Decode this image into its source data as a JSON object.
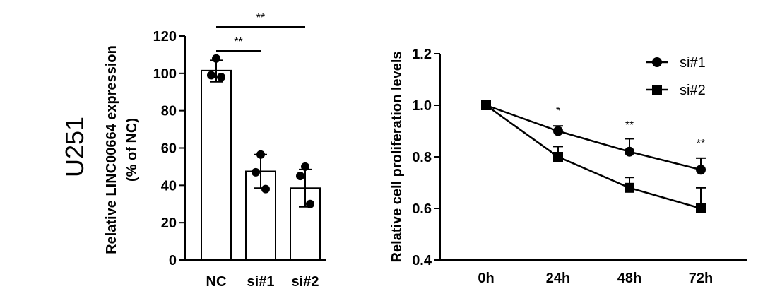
{
  "figure": {
    "row_label": "U251"
  },
  "chart_data": [
    {
      "type": "bar",
      "title": "",
      "xlabel": "",
      "ylabel_line1": "Relative LINC00664 expression",
      "ylabel_line2": "(% of NC)",
      "categories": [
        "NC",
        "si#1",
        "si#2"
      ],
      "values": [
        101.5,
        47.5,
        38.5
      ],
      "error_upper": [
        107,
        56.5,
        48.5
      ],
      "error_lower": [
        95.5,
        38.5,
        28.5
      ],
      "points": [
        [
          108,
          99,
          98
        ],
        [
          56.5,
          47,
          38
        ],
        [
          50,
          45,
          30
        ]
      ],
      "ylim": [
        0,
        120
      ],
      "yticks": [
        "0",
        "20",
        "40",
        "60",
        "80",
        "100",
        "120"
      ],
      "significance": [
        {
          "from": 0,
          "to": 1,
          "label": "**"
        },
        {
          "from": 0,
          "to": 2,
          "label": "**"
        }
      ],
      "colors": {
        "bar_fill": "#ffffff",
        "stroke": "#000000"
      }
    },
    {
      "type": "line",
      "title": "",
      "xlabel": "",
      "ylabel": "Relative cell proliferation levels",
      "categories": [
        "0h",
        "24h",
        "48h",
        "72h"
      ],
      "ylim": [
        0.4,
        1.2
      ],
      "yticks": [
        "0.4",
        "0.6",
        "0.8",
        "1.0",
        "1.2"
      ],
      "series": [
        {
          "name": "si#1",
          "marker": "circle",
          "values": [
            1.0,
            0.9,
            0.82,
            0.75
          ],
          "error_upper": [
            1.0,
            0.92,
            0.87,
            0.795
          ]
        },
        {
          "name": "si#2",
          "marker": "square",
          "values": [
            1.0,
            0.8,
            0.68,
            0.6
          ],
          "error_upper": [
            1.0,
            0.84,
            0.72,
            0.68
          ]
        }
      ],
      "annotations": [
        {
          "category": "24h",
          "label": "*"
        },
        {
          "category": "48h",
          "label": "**"
        },
        {
          "category": "72h",
          "label": "**"
        }
      ],
      "legend_position": "top-right",
      "colors": {
        "line": "#000000",
        "marker": "#000000"
      }
    }
  ]
}
